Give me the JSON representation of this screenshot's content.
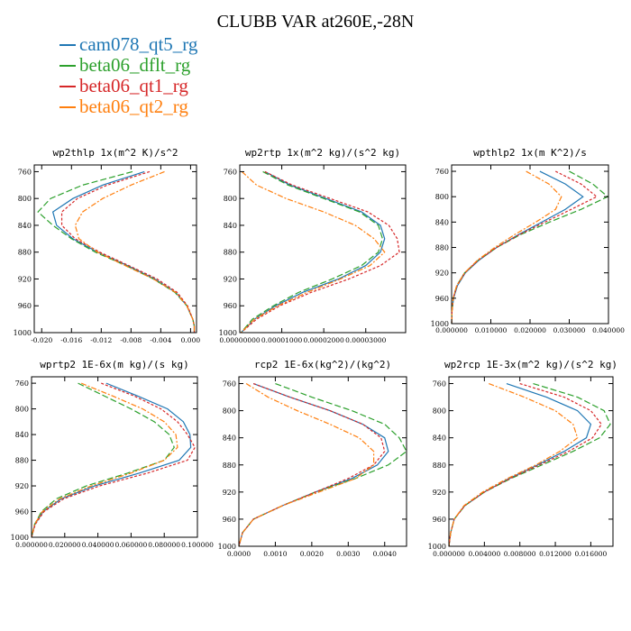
{
  "title": "CLUBB VAR at260E,-28N",
  "legend": [
    {
      "name": "cam078_qt5_rg",
      "color": "#1f77b4"
    },
    {
      "name": "beta06_dflt_rg",
      "color": "#2ca02c"
    },
    {
      "name": "beta06_qt1_rg",
      "color": "#d62728"
    },
    {
      "name": "beta06_qt2_rg",
      "color": "#ff7f0e"
    }
  ],
  "chart_data": [
    {
      "type": "line",
      "title": "wp2thlp  1x(m^2 K)/s^2",
      "xlim": [
        -0.021,
        0.0008
      ],
      "ylim": [
        1000,
        750
      ],
      "xticks": [
        -0.02,
        -0.016,
        -0.012,
        -0.008,
        -0.004,
        0.0
      ],
      "xtick_labels": [
        "-0.020",
        "-0.016",
        "-0.012",
        "-0.008",
        "-0.004",
        "0.000"
      ],
      "yticks": [
        760,
        800,
        840,
        880,
        920,
        960,
        1000
      ],
      "y": [
        760,
        780,
        800,
        820,
        840,
        860,
        880,
        900,
        920,
        940,
        960,
        980,
        990,
        1000
      ],
      "series": [
        {
          "name": "cam078_qt5_rg",
          "values": [
            -0.0062,
            -0.0118,
            -0.0158,
            -0.0185,
            -0.018,
            -0.0158,
            -0.0125,
            -0.0085,
            -0.0048,
            -0.002,
            -0.0005,
            0.0003,
            0.0005,
            0.0005
          ]
        },
        {
          "name": "beta06_dflt_rg",
          "values": [
            -0.0078,
            -0.0145,
            -0.0188,
            -0.0205,
            -0.0185,
            -0.016,
            -0.0128,
            -0.0087,
            -0.005,
            -0.0021,
            -0.0005,
            0.0003,
            0.0005,
            0.0005
          ]
        },
        {
          "name": "beta06_qt1_rg",
          "values": [
            -0.0055,
            -0.0112,
            -0.0152,
            -0.0173,
            -0.0173,
            -0.0155,
            -0.0122,
            -0.0083,
            -0.0045,
            -0.0018,
            -0.0004,
            0.0003,
            0.0005,
            0.0005
          ]
        },
        {
          "name": "beta06_qt2_rg",
          "values": [
            -0.0035,
            -0.008,
            -0.0118,
            -0.0145,
            -0.0155,
            -0.015,
            -0.0125,
            -0.0088,
            -0.005,
            -0.002,
            -0.0005,
            0.0003,
            0.0005,
            0.0005
          ]
        }
      ]
    },
    {
      "type": "line",
      "title": "wp2rtp  1x(m^2 kg)/(s^2 kg)",
      "xlim": [
        0.0,
        3.95e-05
      ],
      "ylim": [
        1000,
        750
      ],
      "xticks": [
        0.0,
        1e-05,
        2e-05,
        3e-05
      ],
      "xtick_labels": [
        "0.00000000",
        "0.00001000",
        "0.00002000",
        "0.00003000"
      ],
      "yticks": [
        760,
        800,
        840,
        880,
        920,
        960,
        1000
      ],
      "y": [
        760,
        780,
        800,
        820,
        840,
        860,
        880,
        900,
        920,
        940,
        960,
        980,
        1000
      ],
      "series": [
        {
          "name": "cam078_qt5_rg",
          "values": [
            6e-06,
            1.2e-05,
            2.05e-05,
            2.9e-05,
            3.35e-05,
            3.45e-05,
            3.35e-05,
            3e-05,
            2.35e-05,
            1.5e-05,
            8.5e-06,
            3.5e-06,
            3e-07
          ]
        },
        {
          "name": "beta06_dflt_rg",
          "values": [
            5.5e-06,
            1.15e-05,
            2e-05,
            2.85e-05,
            3.3e-05,
            3.4e-05,
            3.3e-05,
            2.9e-05,
            2.2e-05,
            1.4e-05,
            8e-06,
            3e-06,
            3e-07
          ]
        },
        {
          "name": "beta06_qt1_rg",
          "values": [
            6e-06,
            1.25e-05,
            2.15e-05,
            3.05e-05,
            3.55e-05,
            3.75e-05,
            3.8e-05,
            3.35e-05,
            2.6e-05,
            1.7e-05,
            9.5e-06,
            4e-06,
            3e-07
          ]
        },
        {
          "name": "beta06_qt2_rg",
          "values": [
            5e-07,
            4e-06,
            1.1e-05,
            2e-05,
            2.75e-05,
            3.2e-05,
            3.45e-05,
            3.1e-05,
            2.4e-05,
            1.6e-05,
            9e-06,
            3.5e-06,
            3e-07
          ]
        }
      ]
    },
    {
      "type": "line",
      "title": "wpthlp2  1x(m K^2)/s",
      "xlim": [
        0.0,
        0.04
      ],
      "ylim": [
        1000,
        750
      ],
      "xticks": [
        0.0,
        0.01,
        0.02,
        0.03,
        0.04
      ],
      "xtick_labels": [
        "0.000000",
        "0.010000",
        "0.020000",
        "0.030000",
        "0.040000"
      ],
      "yticks": [
        760,
        800,
        840,
        880,
        920,
        960,
        1000
      ],
      "y": [
        760,
        780,
        800,
        820,
        840,
        860,
        880,
        900,
        920,
        940,
        960,
        980,
        1000
      ],
      "series": [
        {
          "name": "cam078_qt5_rg",
          "values": [
            0.0225,
            0.029,
            0.0335,
            0.029,
            0.023,
            0.017,
            0.0115,
            0.007,
            0.0035,
            0.0015,
            0.0005,
            0.0001,
            0.0
          ]
        },
        {
          "name": "beta06_dflt_rg",
          "values": [
            0.03,
            0.036,
            0.0398,
            0.033,
            0.025,
            0.0175,
            0.0115,
            0.0068,
            0.0033,
            0.0013,
            0.0004,
            0.0001,
            0.0
          ]
        },
        {
          "name": "beta06_qt1_rg",
          "values": [
            0.0265,
            0.033,
            0.037,
            0.0305,
            0.0238,
            0.0172,
            0.0115,
            0.0068,
            0.0034,
            0.0014,
            0.0004,
            0.0001,
            0.0
          ]
        },
        {
          "name": "beta06_qt2_rg",
          "values": [
            0.019,
            0.0248,
            0.028,
            0.0265,
            0.0215,
            0.016,
            0.011,
            0.0066,
            0.0033,
            0.0013,
            0.0004,
            0.0001,
            0.0
          ]
        }
      ]
    },
    {
      "type": "line",
      "title": "wprtp2  1E-6x(m kg)/(s kg)",
      "xlim": [
        0.0,
        0.1
      ],
      "ylim": [
        1000,
        750
      ],
      "xticks": [
        0.0,
        0.02,
        0.04,
        0.06,
        0.08,
        0.1
      ],
      "xtick_labels": [
        "0.000000",
        "0.020000",
        "0.040000",
        "0.060000",
        "0.080000",
        "0.100000"
      ],
      "yticks": [
        760,
        800,
        840,
        880,
        920,
        960,
        1000
      ],
      "y": [
        760,
        780,
        800,
        820,
        840,
        860,
        880,
        900,
        920,
        940,
        960,
        980,
        1000
      ],
      "series": [
        {
          "name": "cam078_qt5_rg",
          "values": [
            0.045,
            0.064,
            0.082,
            0.0915,
            0.0955,
            0.096,
            0.089,
            0.065,
            0.038,
            0.018,
            0.007,
            0.002,
            0.0
          ]
        },
        {
          "name": "beta06_dflt_rg",
          "values": [
            0.028,
            0.044,
            0.06,
            0.074,
            0.083,
            0.086,
            0.08,
            0.058,
            0.033,
            0.015,
            0.006,
            0.0018,
            0.0
          ]
        },
        {
          "name": "beta06_qt1_rg",
          "values": [
            0.042,
            0.062,
            0.078,
            0.088,
            0.094,
            0.0985,
            0.094,
            0.07,
            0.041,
            0.0195,
            0.0075,
            0.0022,
            0.0
          ]
        },
        {
          "name": "beta06_qt2_rg",
          "values": [
            0.03,
            0.049,
            0.067,
            0.08,
            0.087,
            0.088,
            0.08,
            0.06,
            0.036,
            0.017,
            0.0065,
            0.0018,
            0.0
          ]
        }
      ]
    },
    {
      "type": "line",
      "title": "rcp2  1E-6x(kg^2)/(kg^2)",
      "xlim": [
        0.0,
        0.0046
      ],
      "ylim": [
        1000,
        750
      ],
      "xticks": [
        0.0,
        0.001,
        0.002,
        0.003,
        0.004
      ],
      "xtick_labels": [
        "0.0000",
        "0.0010",
        "0.0020",
        "0.0030",
        "0.0040"
      ],
      "yticks": [
        760,
        800,
        840,
        880,
        920,
        960,
        1000
      ],
      "y": [
        760,
        780,
        800,
        820,
        840,
        860,
        880,
        900,
        920,
        940,
        960,
        980,
        1000
      ],
      "series": [
        {
          "name": "cam078_qt5_rg",
          "values": [
            0.0004,
            0.0014,
            0.0025,
            0.0034,
            0.004,
            0.0041,
            0.0038,
            0.0031,
            0.0021,
            0.0012,
            0.0004,
            0.0001,
            0.0
          ]
        },
        {
          "name": "beta06_dflt_rg",
          "values": [
            0.001,
            0.002,
            0.0031,
            0.004,
            0.0044,
            0.0046,
            0.0041,
            0.0032,
            0.0021,
            0.0012,
            0.0004,
            0.0001,
            0.0
          ]
        },
        {
          "name": "beta06_qt1_rg",
          "values": [
            0.0004,
            0.0014,
            0.0025,
            0.0034,
            0.0039,
            0.004,
            0.0037,
            0.003,
            0.0021,
            0.0012,
            0.0004,
            0.0001,
            0.0
          ]
        },
        {
          "name": "beta06_qt2_rg",
          "values": [
            0.0002,
            0.0008,
            0.0016,
            0.0025,
            0.0033,
            0.0037,
            0.0037,
            0.0032,
            0.0022,
            0.0012,
            0.0004,
            0.0001,
            0.0
          ]
        }
      ]
    },
    {
      "type": "line",
      "title": "wp2rcp  1E-3x(m^2 kg)/(s^2 kg)",
      "xlim": [
        0.0,
        0.0185
      ],
      "ylim": [
        1000,
        750
      ],
      "xticks": [
        0.0,
        0.004,
        0.008,
        0.012,
        0.016
      ],
      "xtick_labels": [
        "0.000000",
        "0.004000",
        "0.008000",
        "0.012000",
        "0.016000"
      ],
      "yticks": [
        760,
        800,
        840,
        880,
        920,
        960,
        1000
      ],
      "y": [
        760,
        780,
        800,
        820,
        840,
        860,
        880,
        900,
        920,
        940,
        960,
        980,
        1000
      ],
      "series": [
        {
          "name": "cam078_qt5_rg",
          "values": [
            0.0065,
            0.011,
            0.0145,
            0.016,
            0.0155,
            0.013,
            0.01,
            0.0068,
            0.004,
            0.0018,
            0.0006,
            0.0002,
            0.0
          ]
        },
        {
          "name": "beta06_dflt_rg",
          "values": [
            0.0095,
            0.0145,
            0.0175,
            0.0182,
            0.017,
            0.014,
            0.0105,
            0.007,
            0.004,
            0.0018,
            0.0006,
            0.0002,
            0.0
          ]
        },
        {
          "name": "beta06_qt1_rg",
          "values": [
            0.008,
            0.013,
            0.016,
            0.0172,
            0.0162,
            0.0135,
            0.0102,
            0.0069,
            0.004,
            0.0018,
            0.0006,
            0.0002,
            0.0
          ]
        },
        {
          "name": "beta06_qt2_rg",
          "values": [
            0.0045,
            0.0085,
            0.012,
            0.014,
            0.0145,
            0.0125,
            0.0098,
            0.0066,
            0.0038,
            0.0017,
            0.0006,
            0.0002,
            0.0
          ]
        }
      ]
    }
  ]
}
